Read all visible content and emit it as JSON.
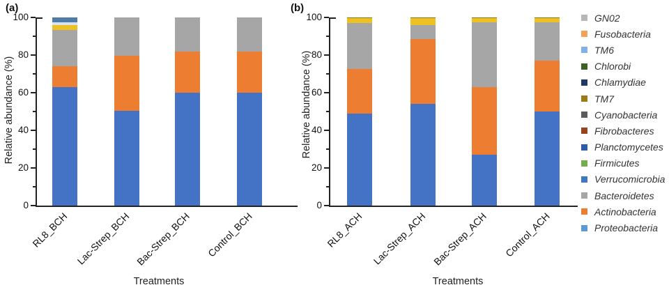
{
  "figure": {
    "background": "#ffffff"
  },
  "chart_data": [
    {
      "type": "stacked_bar",
      "panel_label": "(a)",
      "ylabel": "Relative abundance (%)",
      "xlabel": "Treatments",
      "ylim": [
        0,
        100
      ],
      "yticks": [
        0,
        20,
        40,
        60,
        80,
        100
      ],
      "minor_tick_step": 10,
      "grid": false,
      "categories": [
        "RL8_BCH",
        "Lac-Strep_BCH",
        "Bac-Strep_BCH",
        "Control_BCH"
      ],
      "series": [
        {
          "name": "Proteobacteria",
          "color": "#4472c4",
          "values": [
            63,
            50.5,
            60,
            60
          ]
        },
        {
          "name": "Actinobacteria",
          "color": "#ed7d31",
          "values": [
            11,
            29,
            22,
            22
          ]
        },
        {
          "name": "Bacteroidetes",
          "color": "#a6a6a6",
          "values": [
            19.5,
            20.5,
            18,
            18
          ]
        },
        {
          "name": "TM7",
          "color": "#edc122",
          "values": [
            2.5,
            0,
            0,
            0
          ]
        },
        {
          "name": "TM6",
          "color": "#d9e2ef",
          "values": [
            1.5,
            0,
            0,
            0
          ]
        },
        {
          "name": "Verrucomicrobia",
          "color": "#4e7ba7",
          "values": [
            2.5,
            0,
            0,
            0
          ]
        }
      ]
    },
    {
      "type": "stacked_bar",
      "panel_label": "(b)",
      "ylabel": "Relative abundance (%)",
      "xlabel": "Treatments",
      "ylim": [
        0,
        100
      ],
      "yticks": [
        0,
        20,
        40,
        60,
        80,
        100
      ],
      "minor_tick_step": 10,
      "grid": false,
      "categories": [
        "RL8_ACH",
        "Lac-Strep_ACH",
        "Bac-Strep_ACH",
        "Control_ACH"
      ],
      "series": [
        {
          "name": "Proteobacteria",
          "color": "#4472c4",
          "values": [
            49,
            54,
            27,
            50
          ]
        },
        {
          "name": "Actinobacteria",
          "color": "#ed7d31",
          "values": [
            23.5,
            34.5,
            36,
            27
          ]
        },
        {
          "name": "Bacteroidetes",
          "color": "#a6a6a6",
          "values": [
            24.5,
            7.5,
            34.5,
            20.5
          ]
        },
        {
          "name": "TM7",
          "color": "#edc122",
          "values": [
            2.5,
            3.5,
            2,
            2
          ]
        },
        {
          "name": "Chlorobi",
          "color": "#8a7a12",
          "values": [
            0.5,
            0.5,
            0.5,
            0.5
          ]
        }
      ]
    }
  ],
  "legend": {
    "position": "right",
    "items": [
      {
        "label": "GN02",
        "color": "#b7b7b7"
      },
      {
        "label": "Fusobacteria",
        "color": "#f2a25c"
      },
      {
        "label": "TM6",
        "color": "#7fb2e5"
      },
      {
        "label": "Chlorobi",
        "color": "#3a6323"
      },
      {
        "label": "Chlamydiae",
        "color": "#1f3864"
      },
      {
        "label": "TM7",
        "color": "#9b7b15"
      },
      {
        "label": "Cyanobacteria",
        "color": "#5b5b5b"
      },
      {
        "label": "Fibrobacteres",
        "color": "#97431b"
      },
      {
        "label": "Planctomycetes",
        "color": "#2a5ca8"
      },
      {
        "label": "Firmicutes",
        "color": "#74ad49"
      },
      {
        "label": "Verrucomicrobia",
        "color": "#3e78c0"
      },
      {
        "label": "Bacteroidetes",
        "color": "#a6a6a6"
      },
      {
        "label": "Actinobacteria",
        "color": "#ed7d31"
      },
      {
        "label": "Proteobacteria",
        "color": "#5b9bd5"
      }
    ]
  }
}
